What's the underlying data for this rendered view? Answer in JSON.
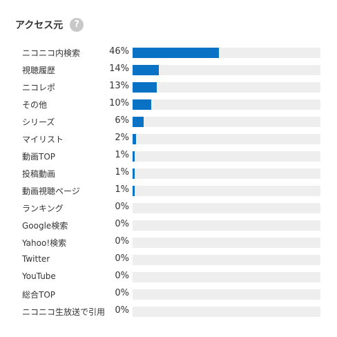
{
  "header": {
    "title": "アクセス元",
    "help_icon": "?"
  },
  "colors": {
    "bar": "#0a72c5",
    "track": "#eeeeee"
  },
  "chart_data": {
    "type": "bar",
    "orientation": "horizontal",
    "title": "アクセス元",
    "categories": [
      "ニコニコ内検索",
      "視聴履歴",
      "ニコレポ",
      "その他",
      "シリーズ",
      "マイリスト",
      "動画TOP",
      "投稿動画",
      "動画視聴ページ",
      "ランキング",
      "Google検索",
      "Yahoo!検索",
      "Twitter",
      "YouTube",
      "総合TOP",
      "ニコニコ生放送で引用"
    ],
    "labels": [
      "46%",
      "14%",
      "13%",
      "10%",
      "6%",
      "2%",
      "1%",
      "1%",
      "1%",
      "0%",
      "0%",
      "0%",
      "0%",
      "0%",
      "0%",
      "0%"
    ],
    "values": [
      46,
      14,
      13,
      10,
      6,
      2,
      1,
      1,
      1,
      0,
      0,
      0,
      0,
      0,
      0,
      0
    ],
    "xlim": [
      0,
      100
    ]
  }
}
